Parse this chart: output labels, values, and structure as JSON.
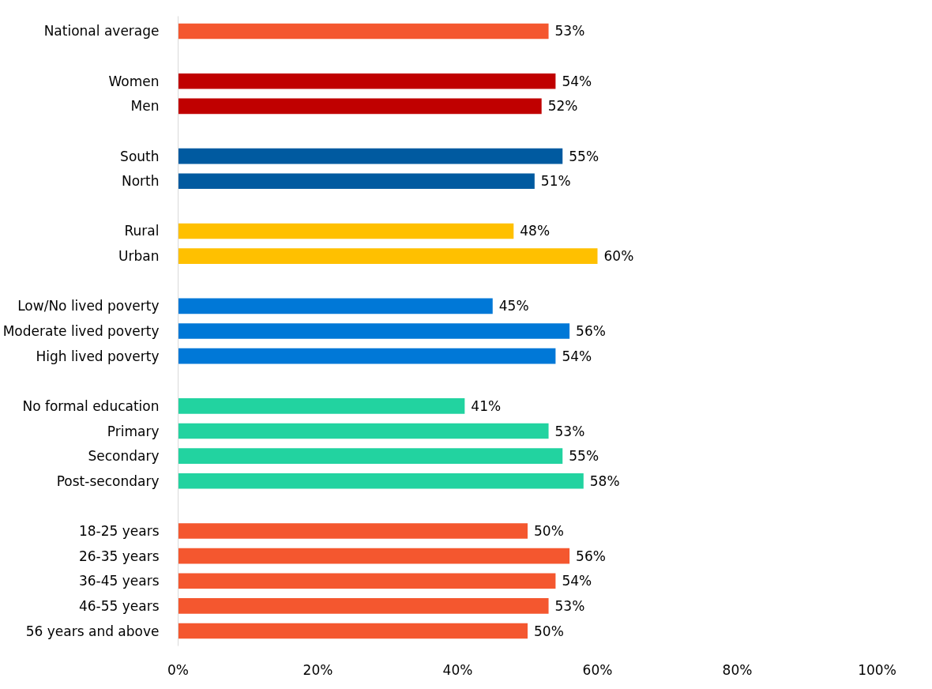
{
  "chart_data": {
    "type": "bar",
    "orientation": "horizontal",
    "categories": [
      "National average",
      null,
      "Women",
      "Men",
      null,
      "South",
      "North",
      null,
      "Rural",
      "Urban",
      null,
      "Low/No lived poverty",
      "Moderate lived poverty",
      "High lived poverty",
      null,
      "No formal education",
      "Primary",
      "Secondary",
      "Post-secondary",
      null,
      "18-25 years",
      "26-35 years",
      "36-45 years",
      "46-55 years",
      "56 years and above"
    ],
    "values": [
      53,
      null,
      54,
      52,
      null,
      55,
      51,
      null,
      48,
      60,
      null,
      45,
      56,
      54,
      null,
      41,
      53,
      55,
      58,
      null,
      50,
      56,
      54,
      53,
      50
    ],
    "colors": [
      "#f4572f",
      null,
      "#c00000",
      "#c00000",
      null,
      "#005aa0",
      "#005aa0",
      null,
      "#ffc000",
      "#ffc000",
      null,
      "#0078d7",
      "#0078d7",
      "#0078d7",
      null,
      "#22d3a0",
      "#22d3a0",
      "#22d3a0",
      "#22d3a0",
      null,
      "#f4572f",
      "#f4572f",
      "#f4572f",
      "#f4572f",
      "#f4572f"
    ],
    "value_labels": [
      "53%",
      null,
      "54%",
      "52%",
      null,
      "55%",
      "51%",
      null,
      "48%",
      "60%",
      null,
      "45%",
      "56%",
      "54%",
      null,
      "41%",
      "53%",
      "55%",
      "58%",
      null,
      "50%",
      "56%",
      "54%",
      "53%",
      "50%"
    ],
    "xlim": [
      0,
      100
    ],
    "xticks": [
      {
        "value": 0,
        "label": "0%"
      },
      {
        "value": 20,
        "label": "20%"
      },
      {
        "value": 40,
        "label": "40%"
      },
      {
        "value": 60,
        "label": "60%"
      },
      {
        "value": 80,
        "label": "80%"
      },
      {
        "value": 100,
        "label": "100%"
      }
    ],
    "grid": false
  }
}
